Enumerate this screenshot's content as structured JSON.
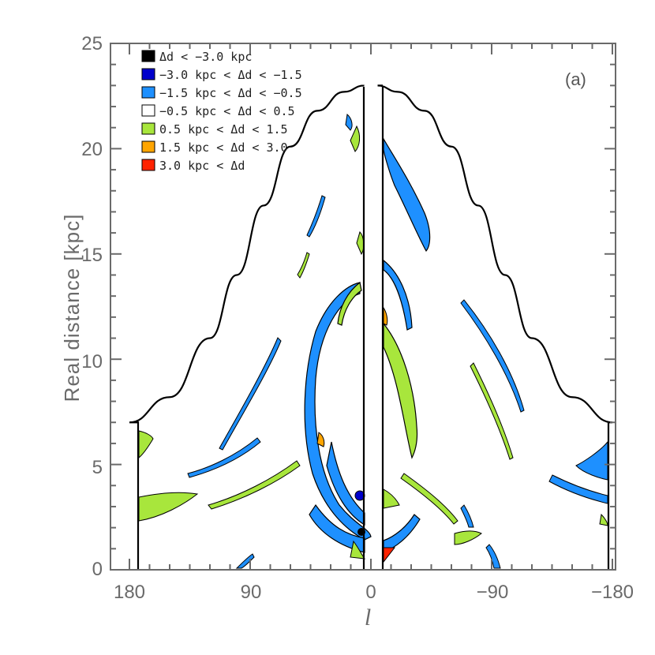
{
  "chart_data": {
    "type": "contour",
    "panel_label": "(a)",
    "xlabel": "l",
    "ylabel": "Real distance [kpc]",
    "x_ticks": [
      180,
      90,
      0,
      -90,
      -180
    ],
    "x_tick_labels": [
      "180",
      "90",
      "0",
      "−90",
      "−180"
    ],
    "y_ticks": [
      0,
      5,
      10,
      15,
      20,
      25
    ],
    "y_tick_labels": [
      "0",
      "5",
      "10",
      "15",
      "20",
      "25"
    ],
    "xlim": [
      180,
      -180
    ],
    "ylim": [
      0,
      25
    ],
    "envelope": {
      "l": [
        180,
        150,
        120,
        100,
        80,
        60,
        40,
        20,
        5
      ],
      "d_max": [
        7.0,
        8.2,
        11.0,
        14.0,
        17.3,
        20.1,
        21.8,
        22.7,
        23.0
      ]
    },
    "legend": [
      {
        "label": "Δd < −3.0 kpc",
        "color": "#000000"
      },
      {
        "label": "−3.0 kpc < Δd < −1.5",
        "color": "#0000cc"
      },
      {
        "label": "−1.5 kpc < Δd < −0.5",
        "color": "#1e90ff"
      },
      {
        "label": "−0.5 kpc < Δd < 0.5",
        "color": "#ffffff"
      },
      {
        "label": "0.5 kpc < Δd < 1.5",
        "color": "#a8e63c"
      },
      {
        "label": "1.5 kpc < Δd < 3.0",
        "color": "#ffa500"
      },
      {
        "label": "3.0 kpc < Δd",
        "color": "#ff2200"
      }
    ]
  }
}
